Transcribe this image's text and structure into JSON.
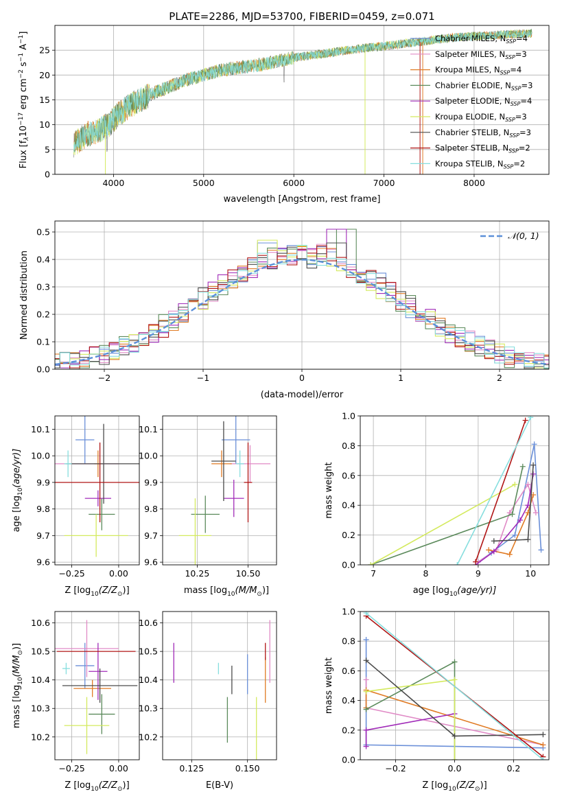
{
  "title": "PLATE=2286, MJD=53700, FIBERID=0459, z=0.071",
  "colors": {
    "chabrier_miles": "#6a8fd8",
    "salpeter_miles": "#e08ac6",
    "kroupa_miles": "#e07b24",
    "chabrier_elodie": "#5b8a5b",
    "salpeter_elodie": "#a02ab8",
    "kroupa_elodie": "#d4ea5e",
    "chabrier_stelib": "#4a4a4a",
    "salpeter_stelib": "#b01515",
    "kroupa_stelib": "#86dede",
    "normal_curve": "#5b8fd8",
    "grid": "#b0b0b0"
  },
  "chart_data": [
    {
      "type": "line",
      "title": "PLATE=2286, MJD=53700, FIBERID=0459, z=0.071",
      "xlabel": "wavelength [Angstrom, rest frame]",
      "ylabel": "Flux [f",
      "ylabel_sub": "λ",
      "ylabel_rest": "10",
      "ylabel_exp1": "−17",
      "ylabel_unit": " erg cm",
      "ylabel_exp2": "−2",
      "ylabel_s": " s",
      "ylabel_exp3": "−1",
      "ylabel_a": " A",
      "ylabel_exp4": "−1",
      "ylabel_end": "]",
      "xlim": [
        3350,
        8830
      ],
      "ylim": [
        0,
        30
      ],
      "xticks": [
        4000,
        5000,
        6000,
        7000,
        8000
      ],
      "yticks": [
        0,
        5,
        10,
        15,
        20,
        25
      ],
      "continuum": {
        "x": [
          3560,
          3700,
          3850,
          3950,
          4050,
          4200,
          4400,
          4600,
          4800,
          5000,
          5200,
          5400,
          5600,
          5800,
          6000,
          6200,
          6400,
          6600,
          6800,
          7000,
          7200,
          7400,
          7600,
          7800,
          8000,
          8200,
          8400,
          8550,
          8640
        ],
        "y": [
          6,
          8,
          9,
          10,
          12,
          14,
          16,
          17.5,
          19,
          20,
          21,
          21.5,
          22,
          22.7,
          23.5,
          24,
          24.5,
          25,
          25.5,
          25.8,
          26.3,
          26.7,
          27.2,
          27.6,
          27.8,
          28,
          28.2,
          28.3,
          28.4
        ]
      },
      "legend_position": "right",
      "series": [
        {
          "key": "chabrier_miles",
          "label": "Chabrier MILES, N",
          "sub": "SSP",
          "n": "=4"
        },
        {
          "key": "salpeter_miles",
          "label": "Salpeter MILES, N",
          "sub": "SSP",
          "n": "=3"
        },
        {
          "key": "kroupa_miles",
          "label": "Kroupa MILES, N",
          "sub": "SSP",
          "n": "=4"
        },
        {
          "key": "chabrier_elodie",
          "label": "Chabrier ELODIE, N",
          "sub": "SSP",
          "n": "=3"
        },
        {
          "key": "salpeter_elodie",
          "label": "Salpeter ELODIE, N",
          "sub": "SSP",
          "n": "=4"
        },
        {
          "key": "kroupa_elodie",
          "label": "Kroupa ELODIE, N",
          "sub": "SSP",
          "n": "=3"
        },
        {
          "key": "chabrier_stelib",
          "label": "Chabrier STELIB, N",
          "sub": "SSP",
          "n": "=3"
        },
        {
          "key": "salpeter_stelib",
          "label": "Salpeter STELIB, N",
          "sub": "SSP",
          "n": "=2"
        },
        {
          "key": "kroupa_stelib",
          "label": "Kroupa STELIB, N",
          "sub": "SSP",
          "n": "=2"
        }
      ]
    },
    {
      "type": "line",
      "xlabel": "(data-model)/error",
      "ylabel": "Normed distribution",
      "xlim": [
        -2.5,
        2.5
      ],
      "ylim": [
        0,
        0.54
      ],
      "xticks": [
        -2,
        -1,
        0,
        1,
        2
      ],
      "yticks": [
        0.0,
        0.1,
        0.2,
        0.3,
        0.4,
        0.5
      ],
      "bin_width": 0.1,
      "legend": "𝒩(0, 1)",
      "legend_position": "top-right",
      "peak_bins": [
        {
          "key": "chabrier_elodie",
          "x": 0.45,
          "y": 0.51
        },
        {
          "key": "salpeter_elodie",
          "x": 0.35,
          "y": 0.51
        },
        {
          "key": "chabrier_stelib",
          "x": 0.35,
          "y": 0.46
        },
        {
          "key": "kroupa_elodie",
          "x": -0.35,
          "y": 0.47
        },
        {
          "key": "chabrier_miles",
          "x": -0.35,
          "y": 0.46
        },
        {
          "key": "kroupa_miles",
          "x": 0.25,
          "y": 0.44
        }
      ]
    },
    {
      "type": "scatter",
      "xlabel": "Z [log",
      "xlabel_sub": "10",
      "xlabel_rest": "(Z/Z",
      "xlabel_sun": "⊙",
      "xlabel_end": ")]",
      "ylabel": "age  [log",
      "ylabel_sub": "10",
      "ylabel_rest": "(age/yr)]",
      "xlim": [
        -0.34,
        0.11
      ],
      "ylim": [
        9.59,
        10.15
      ],
      "xticks": [
        -0.25,
        0.0
      ],
      "xtick_labels": [
        "−0.25",
        "0.00"
      ],
      "yticks": [
        9.6,
        9.7,
        9.8,
        9.9,
        10.0,
        10.1
      ],
      "points": [
        {
          "key": "chabrier_miles",
          "x": -0.18,
          "y": 10.06,
          "xerr": 0.05,
          "yerr": 0.09
        },
        {
          "key": "salpeter_miles",
          "x": -0.17,
          "y": 9.97,
          "xerr": 0.17,
          "yerr": 0.0
        },
        {
          "key": "kroupa_miles",
          "x": -0.11,
          "y": 9.97,
          "xerr": 0.02,
          "yerr": 0.05
        },
        {
          "key": "chabrier_elodie",
          "x": -0.09,
          "y": 9.78,
          "xerr": 0.07,
          "yerr": 0.06
        },
        {
          "key": "salpeter_elodie",
          "x": -0.11,
          "y": 9.84,
          "xerr": 0.07,
          "yerr": 0.03
        },
        {
          "key": "kroupa_elodie",
          "x": -0.12,
          "y": 9.7,
          "xerr": 0.17,
          "yerr": 0.08
        },
        {
          "key": "chabrier_stelib",
          "x": -0.08,
          "y": 9.97,
          "xerr": 0.2,
          "yerr": 0.15
        },
        {
          "key": "salpeter_stelib",
          "x": -0.1,
          "y": 9.9,
          "xerr": 0.29,
          "yerr": 0.15
        },
        {
          "key": "kroupa_stelib",
          "x": -0.27,
          "y": 9.97,
          "xerr": 0.02,
          "yerr": 0.05
        }
      ]
    },
    {
      "type": "scatter",
      "xlabel": "mass [log",
      "xlabel_sub": "10",
      "xlabel_rest": "(M/M",
      "xlabel_sun": "⊙",
      "xlabel_end": ")]",
      "xlim": [
        10.08,
        10.64
      ],
      "ylim": [
        9.59,
        10.15
      ],
      "xticks": [
        10.25,
        10.5
      ],
      "xtick_labels": [
        "10.25",
        "10.50"
      ],
      "yticks": [
        9.6,
        9.7,
        9.8,
        9.9,
        10.0,
        10.1
      ],
      "points": [
        {
          "key": "chabrier_miles",
          "x": 10.44,
          "y": 10.06,
          "xerr": 0.07,
          "yerr": 0.09
        },
        {
          "key": "salpeter_miles",
          "x": 10.51,
          "y": 9.97,
          "xerr": 0.1,
          "yerr": 0.07
        },
        {
          "key": "kroupa_miles",
          "x": 10.37,
          "y": 9.97,
          "xerr": 0.05,
          "yerr": 0.05
        },
        {
          "key": "chabrier_elodie",
          "x": 10.29,
          "y": 9.78,
          "xerr": 0.07,
          "yerr": 0.07
        },
        {
          "key": "salpeter_elodie",
          "x": 10.43,
          "y": 9.84,
          "xerr": 0.05,
          "yerr": 0.07
        },
        {
          "key": "kroupa_elodie",
          "x": 10.24,
          "y": 9.7,
          "xerr": 0.08,
          "yerr": 0.14
        },
        {
          "key": "chabrier_stelib",
          "x": 10.38,
          "y": 9.98,
          "xerr": 0.06,
          "yerr": 0.15
        },
        {
          "key": "salpeter_stelib",
          "x": 10.5,
          "y": 9.9,
          "xerr": 0.02,
          "yerr": 0.15
        },
        {
          "key": "kroupa_stelib",
          "x": 10.46,
          "y": 9.97,
          "xerr": 0.02,
          "yerr": 0.05
        }
      ]
    },
    {
      "type": "line",
      "xlabel": "age  [log",
      "xlabel_sub": "10",
      "xlabel_rest": "(age/yr)]",
      "ylabel": "mass weight",
      "xlim": [
        6.75,
        10.35
      ],
      "ylim": [
        0,
        1
      ],
      "xticks": [
        7,
        8,
        9,
        10
      ],
      "yticks": [
        0.0,
        0.2,
        0.4,
        0.6,
        0.8,
        1.0
      ],
      "series": [
        {
          "key": "chabrier_miles",
          "x": [
            9.0,
            9.25,
            9.7,
            10.07,
            10.2
          ],
          "y": [
            0.02,
            0.08,
            0.2,
            0.81,
            0.1
          ]
        },
        {
          "key": "salpeter_miles",
          "x": [
            9.0,
            9.35,
            9.6,
            9.95,
            10.1
          ],
          "y": [
            0.02,
            0.1,
            0.35,
            0.54,
            0.35
          ]
        },
        {
          "key": "kroupa_miles",
          "x": [
            9.2,
            9.6,
            9.95,
            10.05
          ],
          "y": [
            0.1,
            0.07,
            0.35,
            0.47
          ]
        },
        {
          "key": "chabrier_elodie",
          "x": [
            6.95,
            9.65,
            9.85
          ],
          "y": [
            0.0,
            0.34,
            0.66
          ]
        },
        {
          "key": "salpeter_elodie",
          "x": [
            8.95,
            9.3,
            9.8,
            9.95,
            10.05
          ],
          "y": [
            0.0,
            0.09,
            0.3,
            0.4,
            0.61
          ]
        },
        {
          "key": "kroupa_elodie",
          "x": [
            6.95,
            9.7
          ],
          "y": [
            0.0,
            0.54
          ]
        },
        {
          "key": "chabrier_stelib",
          "x": [
            9.3,
            9.95,
            10.05
          ],
          "y": [
            0.16,
            0.17,
            0.67
          ]
        },
        {
          "key": "salpeter_stelib",
          "x": [
            8.95,
            9.9
          ],
          "y": [
            0.02,
            0.97
          ]
        },
        {
          "key": "kroupa_stelib",
          "x": [
            8.6,
            10.0
          ],
          "y": [
            0.0,
            0.99
          ]
        }
      ]
    },
    {
      "type": "scatter",
      "xlabel": "Z [log",
      "xlabel_sub": "10",
      "xlabel_rest": "(Z/Z",
      "xlabel_sun": "⊙",
      "xlabel_end": ")]",
      "ylabel": "mass [log",
      "ylabel_sub": "10",
      "ylabel_rest": "(M/M",
      "ylabel_sun": "⊙",
      "ylabel_end": ")]",
      "xlim": [
        -0.34,
        0.11
      ],
      "ylim": [
        10.12,
        10.64
      ],
      "xticks": [
        -0.25,
        0.0
      ],
      "xtick_labels": [
        "−0.25",
        "0.00"
      ],
      "yticks": [
        10.2,
        10.3,
        10.4,
        10.5,
        10.6
      ],
      "points": [
        {
          "key": "chabrier_miles",
          "x": -0.18,
          "y": 10.45,
          "xerr": 0.05,
          "yerr": 0.08
        },
        {
          "key": "salpeter_miles",
          "x": -0.17,
          "y": 10.51,
          "xerr": 0.17,
          "yerr": 0.1
        },
        {
          "key": "kroupa_miles",
          "x": -0.14,
          "y": 10.37,
          "xerr": 0.1,
          "yerr": 0.03
        },
        {
          "key": "chabrier_elodie",
          "x": -0.09,
          "y": 10.28,
          "xerr": 0.07,
          "yerr": 0.07
        },
        {
          "key": "salpeter_elodie",
          "x": -0.11,
          "y": 10.43,
          "xerr": 0.05,
          "yerr": 0.1
        },
        {
          "key": "kroupa_elodie",
          "x": -0.17,
          "y": 10.24,
          "xerr": 0.12,
          "yerr": 0.1
        },
        {
          "key": "chabrier_stelib",
          "x": -0.1,
          "y": 10.38,
          "xerr": 0.2,
          "yerr": 0.06
        },
        {
          "key": "salpeter_stelib",
          "x": -0.12,
          "y": 10.5,
          "xerr": 0.21,
          "yerr": 0.0
        },
        {
          "key": "kroupa_stelib",
          "x": -0.28,
          "y": 10.44,
          "xerr": 0.02,
          "yerr": 0.02
        }
      ]
    },
    {
      "type": "scatter",
      "xlabel": "E(B-V)",
      "xlim": [
        0.112,
        0.163
      ],
      "ylim": [
        10.12,
        10.64
      ],
      "xticks": [
        0.125,
        0.15
      ],
      "xtick_labels": [
        "0.125",
        "0.150"
      ],
      "yticks": [
        10.2,
        10.3,
        10.4,
        10.5,
        10.6
      ],
      "points": [
        {
          "key": "salpeter_elodie",
          "x": 0.117,
          "y": 10.46,
          "yerr": 0.07
        },
        {
          "key": "kroupa_stelib",
          "x": 0.137,
          "y": 10.44,
          "yerr": 0.02
        },
        {
          "key": "chabrier_stelib",
          "x": 0.143,
          "y": 10.4,
          "yerr": 0.05
        },
        {
          "key": "chabrier_elodie",
          "x": 0.141,
          "y": 10.26,
          "yerr": 0.08
        },
        {
          "key": "chabrier_miles",
          "x": 0.15,
          "y": 10.42,
          "yerr": 0.07
        },
        {
          "key": "kroupa_elodie",
          "x": 0.154,
          "y": 10.2,
          "yerr": 0.14
        },
        {
          "key": "kroupa_miles",
          "x": 0.158,
          "y": 10.4,
          "yerr": 0.08
        },
        {
          "key": "salpeter_stelib",
          "x": 0.158,
          "y": 10.5,
          "yerr": 0.03
        },
        {
          "key": "salpeter_miles",
          "x": 0.16,
          "y": 10.5,
          "yerr": 0.11
        }
      ]
    },
    {
      "type": "line",
      "xlabel": "Z [log",
      "xlabel_sub": "10",
      "xlabel_rest": "(Z/Z",
      "xlabel_sun": "⊙",
      "xlabel_end": ")]",
      "ylabel": "mass weight",
      "xlim": [
        -0.32,
        0.32
      ],
      "ylim": [
        0,
        1
      ],
      "xticks": [
        -0.2,
        0.0,
        0.2
      ],
      "xtick_labels": [
        "−0.2",
        "0.0",
        "0.2"
      ],
      "yticks": [
        0.0,
        0.2,
        0.4,
        0.6,
        0.8,
        1.0
      ],
      "series": [
        {
          "key": "chabrier_miles",
          "x": [
            -0.3,
            -0.3,
            0.3
          ],
          "y": [
            0.81,
            0.1,
            0.08
          ]
        },
        {
          "key": "salpeter_miles",
          "x": [
            -0.3,
            -0.3,
            0.3
          ],
          "y": [
            0.54,
            0.35,
            0.1
          ]
        },
        {
          "key": "kroupa_miles",
          "x": [
            -0.3,
            -0.3,
            0.3
          ],
          "y": [
            0.35,
            0.47,
            0.1
          ]
        },
        {
          "key": "chabrier_elodie",
          "x": [
            -0.3,
            0.0,
            0.0
          ],
          "y": [
            0.34,
            0.66,
            0.0
          ]
        },
        {
          "key": "salpeter_elodie",
          "x": [
            -0.3,
            -0.3,
            0.0
          ],
          "y": [
            0.09,
            0.2,
            0.31
          ]
        },
        {
          "key": "kroupa_elodie",
          "x": [
            -0.3,
            0.0,
            0.0
          ],
          "y": [
            0.46,
            0.54,
            0.0
          ]
        },
        {
          "key": "chabrier_stelib",
          "x": [
            -0.3,
            0.0,
            0.3
          ],
          "y": [
            0.67,
            0.16,
            0.17
          ]
        },
        {
          "key": "salpeter_stelib",
          "x": [
            -0.3,
            0.3
          ],
          "y": [
            0.97,
            0.02
          ]
        },
        {
          "key": "kroupa_stelib",
          "x": [
            -0.3,
            0.3
          ],
          "y": [
            0.99,
            0.0
          ]
        }
      ]
    }
  ]
}
